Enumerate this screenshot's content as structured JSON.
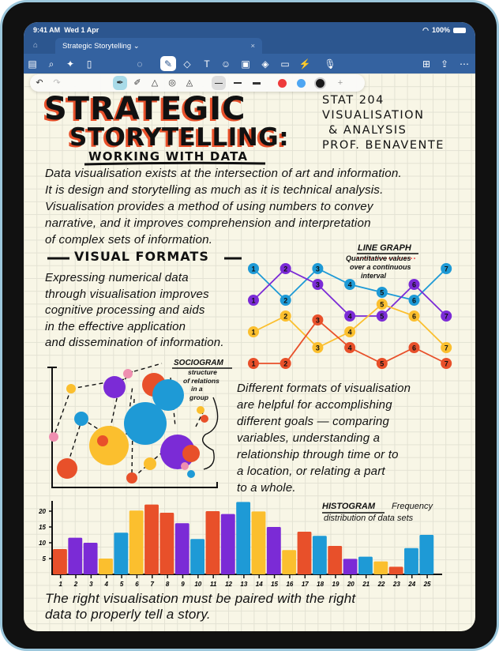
{
  "status": {
    "time": "9:41 AM",
    "date": "Wed 1 Apr",
    "battery": "100%"
  },
  "tab": {
    "title": "Strategic Storytelling",
    "chevron": "⌄",
    "close": "×"
  },
  "toolbar": {
    "left": [
      {
        "icon": "sidebar-icon",
        "glyph": "▤"
      },
      {
        "icon": "search-icon",
        "glyph": "⌕"
      },
      {
        "icon": "sparkle-icon",
        "glyph": "✦"
      },
      {
        "icon": "document-icon",
        "glyph": "▯"
      }
    ],
    "center": [
      {
        "icon": "lasso-icon",
        "glyph": "◌"
      },
      {
        "icon": "pen-icon",
        "glyph": "✎",
        "selected": true
      },
      {
        "icon": "eraser-icon",
        "glyph": "◇"
      },
      {
        "icon": "text-box-icon",
        "glyph": "T"
      },
      {
        "icon": "sticker-icon",
        "glyph": "☺"
      },
      {
        "icon": "image-icon",
        "glyph": "▣"
      },
      {
        "icon": "shapes-icon",
        "glyph": "◈"
      },
      {
        "icon": "sticky-note-icon",
        "glyph": "▭"
      },
      {
        "icon": "laser-pointer-icon",
        "glyph": "⚡"
      },
      {
        "icon": "microphone-icon",
        "glyph": "🎙"
      }
    ],
    "right": [
      {
        "icon": "add-page-icon",
        "glyph": "⊞"
      },
      {
        "icon": "share-icon",
        "glyph": "⇪"
      },
      {
        "icon": "more-icon",
        "glyph": "⋯"
      }
    ]
  },
  "pen_strip": {
    "undo": "↶",
    "redo": "↷",
    "pens": [
      {
        "icon": "fountain-pen-icon",
        "glyph": "✒",
        "selected": true
      },
      {
        "icon": "brush-pen-icon",
        "glyph": "✐"
      },
      {
        "icon": "highlighter-icon",
        "glyph": "△"
      },
      {
        "icon": "tape-icon",
        "glyph": "◎"
      },
      {
        "icon": "shape-pen-icon",
        "glyph": "◬"
      }
    ],
    "thickness": [
      {
        "name": "thin",
        "selected": true
      },
      {
        "name": "medium"
      },
      {
        "name": "thick"
      }
    ],
    "colors": [
      {
        "name": "red",
        "hex": "#ee3b3b"
      },
      {
        "name": "blue",
        "hex": "#4ea6f2"
      },
      {
        "name": "black",
        "hex": "#1a1a1a",
        "selected": true
      }
    ],
    "add_color": "+"
  },
  "note": {
    "title_1": "STRATEGIC",
    "title_2": "STORYTELLING:",
    "subtitle": "WORKING WITH DATA",
    "course": [
      "STAT 204",
      "VISUALISATION",
      "& ANALYSIS",
      "PROF. BENAVENTE"
    ],
    "intro": [
      "Data visualisation exists at the intersection of art and information.",
      "It is design and storytelling as much as it is technical analysis.",
      "Visualisation provides a method of using numbers to convey",
      "narrative, and it improves comprehension and interpretation",
      "of complex sets of information."
    ],
    "section": "VISUAL FORMATS",
    "formats_text": [
      "Expressing numerical data",
      "through visualisation improves",
      "cognitive processing and aids",
      "in the effective application",
      "and dissemination of information."
    ],
    "goals_text": [
      "Different formats of visualisation",
      "are helpful for accomplishing",
      "different goals — comparing",
      "variables, understanding a",
      "relationship through time or to",
      "a location, or relating a part",
      "to a whole."
    ],
    "line_graph_label": "LINE GRAPH",
    "line_graph_desc": [
      "Quantitative values",
      "over a continuous",
      "interval"
    ],
    "sociogram_label": "SOCIOGRAM",
    "sociogram_desc": [
      "structure",
      "of relations",
      "in a",
      "group"
    ],
    "histogram_label": "HISTOGRAM",
    "histogram_desc": [
      "Frequency",
      "distribution of data sets"
    ],
    "closing": [
      "The right visualisation must be paired with the right",
      "data to properly tell a story."
    ]
  },
  "colors": {
    "red": "#e8502a",
    "purple": "#7b2bd6",
    "yellow": "#fbbf2e",
    "blue": "#1e9ad6",
    "pink": "#ef8fb0"
  },
  "chart_data": [
    {
      "type": "line",
      "title": "LINE GRAPH",
      "x": [
        1,
        2,
        3,
        4,
        5,
        6,
        7
      ],
      "series": [
        {
          "color": "blue",
          "values": [
            13,
            9,
            13,
            11,
            10,
            9,
            13
          ]
        },
        {
          "color": "purple",
          "values": [
            9,
            13,
            11,
            7,
            7,
            11,
            7
          ]
        },
        {
          "color": "yellow",
          "values": [
            5,
            7,
            3,
            5,
            8.5,
            7,
            3
          ]
        },
        {
          "color": "red",
          "values": [
            1,
            1,
            6.5,
            3,
            1,
            3,
            1
          ]
        }
      ]
    },
    {
      "type": "bar",
      "title": "HISTOGRAM",
      "categories": [
        "1",
        "2",
        "3",
        "4",
        "5",
        "6",
        "7",
        "8",
        "9",
        "10",
        "11",
        "12",
        "13",
        "14",
        "15",
        "16",
        "17",
        "18",
        "19",
        "20",
        "21",
        "22",
        "23",
        "24",
        "25"
      ],
      "values": [
        8,
        11.6,
        10,
        5,
        13.2,
        20.2,
        22.1,
        19.5,
        16.2,
        11.2,
        20,
        19.1,
        22.9,
        19.9,
        15,
        7.7,
        13.5,
        12.2,
        9,
        4.9,
        5.6,
        4.1,
        2.4,
        8.3,
        12.5
      ],
      "bar_colors": [
        "red",
        "purple",
        "purple",
        "yellow",
        "blue",
        "yellow",
        "red",
        "red",
        "purple",
        "blue",
        "red",
        "purple",
        "blue",
        "yellow",
        "purple",
        "yellow",
        "red",
        "blue",
        "red",
        "purple",
        "blue",
        "yellow",
        "red",
        "blue",
        "blue"
      ],
      "yticks": [
        5,
        10,
        15,
        20
      ],
      "ylim": [
        0,
        23
      ]
    }
  ]
}
